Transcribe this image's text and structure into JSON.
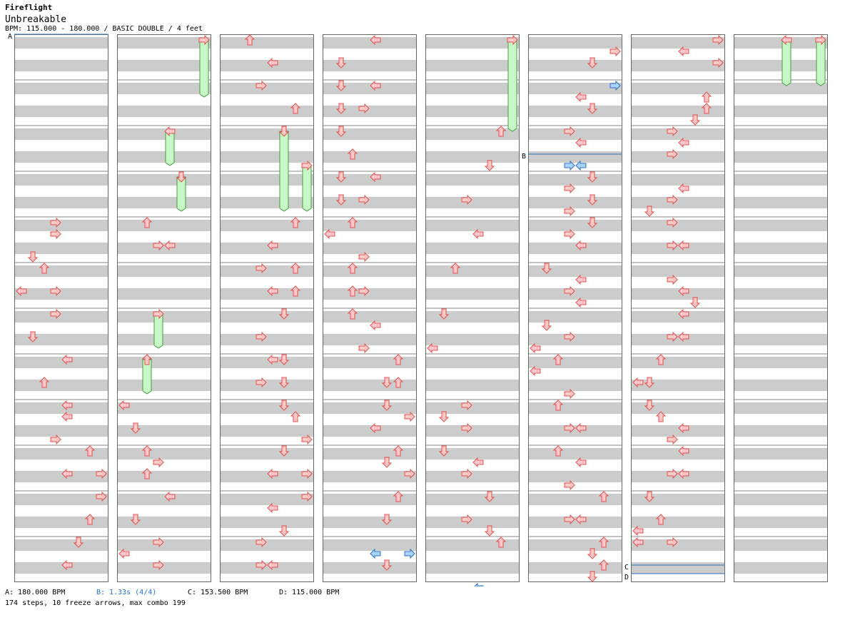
{
  "header": {
    "title": "Fireflight",
    "artist": "Unbreakable",
    "info": "BPM: 115.000 - 180.000 / BASIC DOUBLE / 4 feet"
  },
  "footer": {
    "bpm_a": "A: 180.000 BPM",
    "stop_b": "B: 1.33s (4/4)",
    "bpm_c": "C: 153.500 BPM",
    "bpm_d": "D: 115.000 BPM",
    "summary": "174 steps, 10 freeze arrows, max combo 199"
  },
  "colors": {
    "note": "#ffc8c8",
    "note_stroke": "#e05050",
    "shock": "#a8d4ff",
    "shock_stroke": "#3070c0",
    "freeze": "#c8f8c8",
    "freeze_stroke": "#40a040",
    "band": "#cccccc",
    "marker": "#3070c0"
  },
  "chart_data": {
    "columns": 8,
    "lanes": [
      "left",
      "down",
      "up",
      "right",
      "left",
      "down",
      "up",
      "right"
    ],
    "markers": [
      {
        "label": "A",
        "col": 0,
        "row": 0
      },
      {
        "label": "B",
        "col": 5,
        "row": 10.5
      },
      {
        "label": "C",
        "col": 6,
        "row": 46.5
      },
      {
        "label": "D",
        "col": 6,
        "row": 47.25
      }
    ],
    "freezes": [
      {
        "col": 1,
        "lane": 7,
        "start": 0,
        "end": 4.5
      },
      {
        "col": 1,
        "lane": 4,
        "start": 8,
        "end": 10.5
      },
      {
        "col": 1,
        "lane": 5,
        "start": 12,
        "end": 14.5
      },
      {
        "col": 1,
        "lane": 3,
        "start": 24,
        "end": 26.5
      },
      {
        "col": 1,
        "lane": 2,
        "start": 28,
        "end": 30.5
      },
      {
        "col": 2,
        "lane": 5,
        "start": 8,
        "end": 14.5
      },
      {
        "col": 2,
        "lane": 7,
        "start": 11,
        "end": 14.5
      },
      {
        "col": 4,
        "lane": 7,
        "start": 0,
        "end": 7.5
      },
      {
        "col": 7,
        "lane": 4,
        "start": 0,
        "end": 3.5
      },
      {
        "col": 7,
        "lane": 7,
        "start": 0,
        "end": 3.5
      }
    ],
    "shocks": [
      {
        "col": 5,
        "lane": 7,
        "row": 4
      },
      {
        "col": 5,
        "lane": 3,
        "row": 11
      },
      {
        "col": 5,
        "lane": 4,
        "row": 11
      },
      {
        "col": 3,
        "lane": 4,
        "row": 45
      },
      {
        "col": 3,
        "lane": 7,
        "row": 45
      },
      {
        "col": 4,
        "lane": 4,
        "row": 48
      }
    ],
    "notes": [
      [
        [
          16,
          3
        ],
        [
          17,
          3
        ],
        [
          19,
          1
        ],
        [
          20,
          2
        ],
        [
          22,
          0
        ],
        [
          22,
          3
        ],
        [
          24,
          3
        ],
        [
          26,
          1
        ],
        [
          28,
          4
        ],
        [
          30,
          2
        ],
        [
          32,
          4
        ],
        [
          33,
          4
        ],
        [
          35,
          3
        ],
        [
          36,
          6
        ],
        [
          38,
          4
        ],
        [
          38,
          7
        ],
        [
          40,
          7
        ],
        [
          42,
          6
        ],
        [
          44,
          5
        ],
        [
          46,
          4
        ]
      ],
      [
        [
          16,
          2
        ],
        [
          18,
          3
        ],
        [
          18,
          4
        ],
        [
          32,
          0
        ],
        [
          34,
          1
        ],
        [
          36,
          2
        ],
        [
          37,
          3
        ],
        [
          38,
          2
        ],
        [
          40,
          4
        ],
        [
          42,
          1
        ],
        [
          44,
          3
        ],
        [
          45,
          0
        ],
        [
          46,
          3
        ]
      ],
      [
        [
          0,
          2
        ],
        [
          2,
          4
        ],
        [
          4,
          3
        ],
        [
          6,
          6
        ],
        [
          16,
          6
        ],
        [
          18,
          4
        ],
        [
          20,
          3
        ],
        [
          20,
          6
        ],
        [
          22,
          4
        ],
        [
          22,
          6
        ],
        [
          24,
          5
        ],
        [
          26,
          3
        ],
        [
          28,
          4
        ],
        [
          28,
          5
        ],
        [
          30,
          3
        ],
        [
          30,
          5
        ],
        [
          32,
          5
        ],
        [
          33,
          6
        ],
        [
          35,
          7
        ],
        [
          36,
          5
        ],
        [
          38,
          4
        ],
        [
          38,
          7
        ],
        [
          40,
          7
        ],
        [
          41,
          4
        ],
        [
          43,
          5
        ],
        [
          44,
          3
        ],
        [
          46,
          3
        ],
        [
          46,
          4
        ]
      ],
      [
        [
          0,
          4
        ],
        [
          2,
          1
        ],
        [
          4,
          1
        ],
        [
          4,
          4
        ],
        [
          6,
          1
        ],
        [
          6,
          3
        ],
        [
          8,
          1
        ],
        [
          10,
          2
        ],
        [
          12,
          1
        ],
        [
          12,
          4
        ],
        [
          14,
          1
        ],
        [
          14,
          3
        ],
        [
          16,
          2
        ],
        [
          17,
          0
        ],
        [
          19,
          3
        ],
        [
          20,
          2
        ],
        [
          22,
          2
        ],
        [
          22,
          3
        ],
        [
          24,
          2
        ],
        [
          25,
          4
        ],
        [
          27,
          3
        ],
        [
          28,
          6
        ],
        [
          30,
          5
        ],
        [
          30,
          6
        ],
        [
          32,
          5
        ],
        [
          33,
          7
        ],
        [
          34,
          4
        ],
        [
          36,
          6
        ],
        [
          37,
          5
        ],
        [
          38,
          7
        ],
        [
          40,
          6
        ],
        [
          42,
          5
        ],
        [
          46,
          5
        ]
      ],
      [
        [
          8,
          6
        ],
        [
          11,
          5
        ],
        [
          14,
          3
        ],
        [
          17,
          4
        ],
        [
          20,
          2
        ],
        [
          24,
          1
        ],
        [
          27,
          0
        ],
        [
          32,
          3
        ],
        [
          33,
          1
        ],
        [
          34,
          3
        ],
        [
          36,
          1
        ],
        [
          37,
          4
        ],
        [
          38,
          3
        ],
        [
          40,
          5
        ],
        [
          42,
          3
        ],
        [
          43,
          5
        ],
        [
          44,
          6
        ]
      ],
      [
        [
          1,
          7
        ],
        [
          2,
          5
        ],
        [
          5,
          4
        ],
        [
          6,
          5
        ],
        [
          8,
          3
        ],
        [
          9,
          4
        ],
        [
          12,
          5
        ],
        [
          13,
          3
        ],
        [
          14,
          5
        ],
        [
          15,
          3
        ],
        [
          16,
          5
        ],
        [
          17,
          3
        ],
        [
          18,
          4
        ],
        [
          20,
          1
        ],
        [
          21,
          4
        ],
        [
          22,
          3
        ],
        [
          23,
          4
        ],
        [
          25,
          1
        ],
        [
          26,
          3
        ],
        [
          27,
          0
        ],
        [
          28,
          2
        ],
        [
          29,
          0
        ],
        [
          31,
          3
        ],
        [
          32,
          2
        ],
        [
          34,
          3
        ],
        [
          34,
          4
        ],
        [
          36,
          2
        ],
        [
          37,
          4
        ],
        [
          39,
          3
        ],
        [
          40,
          6
        ],
        [
          42,
          3
        ],
        [
          42,
          4
        ],
        [
          44,
          6
        ],
        [
          45,
          5
        ],
        [
          46,
          6
        ],
        [
          47,
          5
        ]
      ],
      [
        [
          0,
          7
        ],
        [
          1,
          4
        ],
        [
          2,
          7
        ],
        [
          5,
          6
        ],
        [
          6,
          6
        ],
        [
          7,
          5
        ],
        [
          8,
          3
        ],
        [
          9,
          4
        ],
        [
          10,
          3
        ],
        [
          13,
          4
        ],
        [
          14,
          3
        ],
        [
          15,
          1
        ],
        [
          16,
          3
        ],
        [
          18,
          3
        ],
        [
          18,
          4
        ],
        [
          21,
          3
        ],
        [
          22,
          4
        ],
        [
          23,
          5
        ],
        [
          24,
          4
        ],
        [
          26,
          3
        ],
        [
          26,
          4
        ],
        [
          28,
          2
        ],
        [
          30,
          0
        ],
        [
          30,
          1
        ],
        [
          32,
          1
        ],
        [
          33,
          2
        ],
        [
          34,
          4
        ],
        [
          35,
          3
        ],
        [
          36,
          4
        ],
        [
          38,
          3
        ],
        [
          38,
          4
        ],
        [
          40,
          1
        ],
        [
          42,
          2
        ],
        [
          43,
          0
        ],
        [
          44,
          0
        ],
        [
          44,
          3
        ]
      ],
      []
    ]
  }
}
